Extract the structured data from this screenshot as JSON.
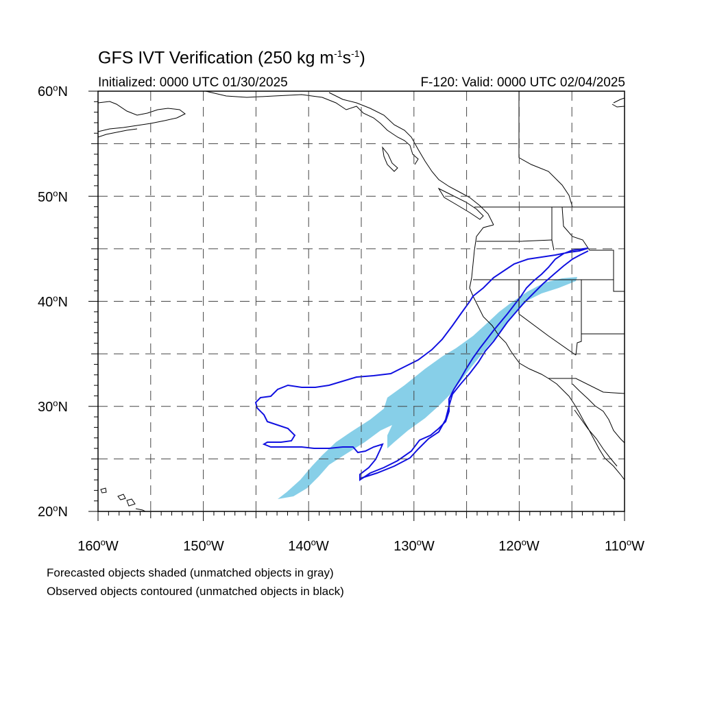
{
  "title": {
    "main": "GFS IVT Verification (250 kg m",
    "sup1": "-1",
    "mid": "s",
    "sup2": "-1",
    "end": ")"
  },
  "init_label": "Initialized: 0000 UTC 01/30/2025",
  "valid_label": "F-120: Valid: 0000 UTC 02/04/2025",
  "lat_labels": [
    {
      "num": "60",
      "hemi": "N"
    },
    {
      "num": "50",
      "hemi": "N"
    },
    {
      "num": "40",
      "hemi": "N"
    },
    {
      "num": "30",
      "hemi": "N"
    },
    {
      "num": "20",
      "hemi": "N"
    }
  ],
  "lon_labels": [
    {
      "num": "160",
      "hemi": "W"
    },
    {
      "num": "150",
      "hemi": "W"
    },
    {
      "num": "140",
      "hemi": "W"
    },
    {
      "num": "130",
      "hemi": "W"
    },
    {
      "num": "120",
      "hemi": "W"
    },
    {
      "num": "110",
      "hemi": "W"
    }
  ],
  "degree_symbol": "o",
  "footnote_1": "Forecasted objects shaded (unmatched objects in gray)",
  "footnote_2": "Observed objects contoured (unmatched objects in black)",
  "colors": {
    "forecast_fill": "#87cfe8",
    "observed_contour": "#1010e0",
    "coastline": "#000000",
    "grid": "#444444"
  }
}
